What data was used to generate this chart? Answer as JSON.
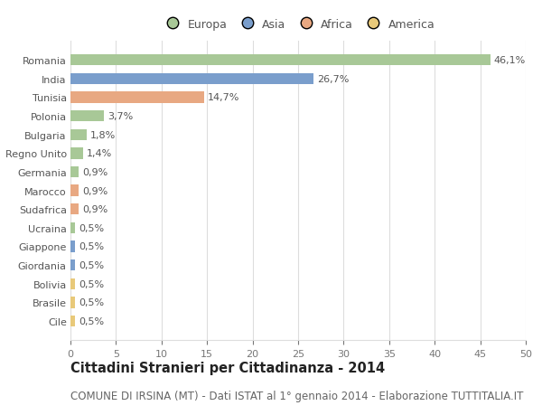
{
  "categories": [
    "Cile",
    "Brasile",
    "Bolivia",
    "Giordania",
    "Giappone",
    "Ucraina",
    "Sudafrica",
    "Marocco",
    "Germania",
    "Regno Unito",
    "Bulgaria",
    "Polonia",
    "Tunisia",
    "India",
    "Romania"
  ],
  "values": [
    0.5,
    0.5,
    0.5,
    0.5,
    0.5,
    0.5,
    0.9,
    0.9,
    0.9,
    1.4,
    1.8,
    3.7,
    14.7,
    26.7,
    46.1
  ],
  "labels": [
    "0,5%",
    "0,5%",
    "0,5%",
    "0,5%",
    "0,5%",
    "0,5%",
    "0,9%",
    "0,9%",
    "0,9%",
    "1,4%",
    "1,8%",
    "3,7%",
    "14,7%",
    "26,7%",
    "46,1%"
  ],
  "colors": [
    "#e8c97a",
    "#e8c97a",
    "#e8c97a",
    "#7a9ecc",
    "#7a9ecc",
    "#a8c897",
    "#e8a882",
    "#e8a882",
    "#a8c897",
    "#a8c897",
    "#a8c897",
    "#a8c897",
    "#e8a882",
    "#7a9ecc",
    "#a8c897"
  ],
  "legend_labels": [
    "Europa",
    "Asia",
    "Africa",
    "America"
  ],
  "legend_colors": [
    "#a8c897",
    "#7a9ecc",
    "#e8a882",
    "#e8c97a"
  ],
  "title": "Cittadini Stranieri per Cittadinanza - 2014",
  "subtitle": "COMUNE DI IRSINA (MT) - Dati ISTAT al 1° gennaio 2014 - Elaborazione TUTTITALIA.IT",
  "xlim": [
    0,
    50
  ],
  "xticks": [
    0,
    5,
    10,
    15,
    20,
    25,
    30,
    35,
    40,
    45,
    50
  ],
  "background_color": "#ffffff",
  "grid_color": "#dddddd",
  "bar_height": 0.6,
  "title_fontsize": 10.5,
  "subtitle_fontsize": 8.5,
  "label_fontsize": 8,
  "tick_fontsize": 8,
  "legend_fontsize": 9
}
